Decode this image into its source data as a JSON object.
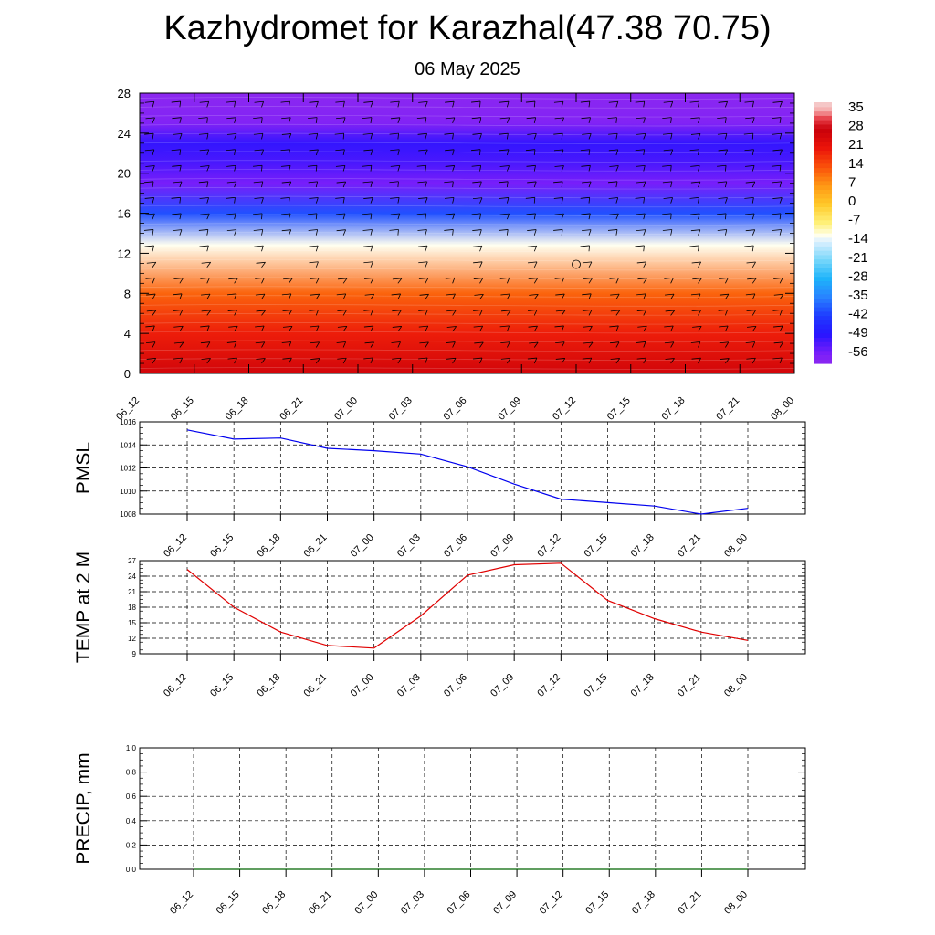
{
  "title": "Kazhydromet for Karazhal(47.38 70.75)",
  "subtitle": "06 May 2025",
  "colors": {
    "pmsl_line": "#0000ee",
    "temp_line": "#e00000",
    "precip_line": "#006400"
  },
  "chart_data": [
    {
      "type": "heatmap",
      "title": "",
      "xlabel": "",
      "ylabel": "",
      "x_ticks": [
        "06_12",
        "06_15",
        "06_18",
        "06_21",
        "07_00",
        "07_03",
        "07_06",
        "07_09",
        "07_12",
        "07_15",
        "07_18",
        "07_21",
        "08_00"
      ],
      "y_ticks": [
        "0",
        "4",
        "8",
        "12",
        "16",
        "20",
        "24",
        "28"
      ],
      "ylim": [
        0,
        28
      ],
      "colorbar_labels": [
        "35",
        "28",
        "21",
        "14",
        "7",
        "0",
        "-7",
        "-14",
        "-21",
        "-28",
        "-35",
        "-42",
        "-49",
        "-56"
      ],
      "colorbar_range": [
        -60,
        38
      ],
      "temperature_profile": [
        {
          "level": 0,
          "value": 26
        },
        {
          "level": 4,
          "value": 20
        },
        {
          "level": 8,
          "value": 12
        },
        {
          "level": 12.8,
          "value": -12
        },
        {
          "level": 16,
          "value": -40
        },
        {
          "level": 19,
          "value": -56
        },
        {
          "level": 21,
          "value": -52
        },
        {
          "level": 23,
          "value": -50
        },
        {
          "level": 25,
          "value": -58
        },
        {
          "level": 28,
          "value": -60
        }
      ],
      "wind_barbs": "present"
    },
    {
      "type": "line",
      "ylabel": "PMSL",
      "categories": [
        "06_12",
        "06_15",
        "06_18",
        "06_21",
        "07_00",
        "07_03",
        "07_06",
        "07_09",
        "07_12",
        "07_15",
        "07_18",
        "07_21",
        "08_00"
      ],
      "y_ticks": [
        "1008",
        "1010",
        "1012",
        "1014",
        "1016"
      ],
      "ylim": [
        1008,
        1016
      ],
      "grid": true,
      "series": [
        {
          "values": [
            1015.3,
            1014.5,
            1014.6,
            1013.7,
            1013.5,
            1013.2,
            1012.1,
            1010.6,
            1009.3,
            1009.0,
            1008.7,
            1008.0,
            1008.5
          ]
        }
      ]
    },
    {
      "type": "line",
      "ylabel": "TEMP at 2 M",
      "categories": [
        "06_12",
        "06_15",
        "06_18",
        "06_21",
        "07_00",
        "07_03",
        "07_06",
        "07_09",
        "07_12",
        "07_15",
        "07_18",
        "07_21",
        "08_00"
      ],
      "y_ticks": [
        "9",
        "12",
        "15",
        "18",
        "21",
        "24",
        "27"
      ],
      "ylim": [
        9,
        27
      ],
      "grid": true,
      "series": [
        {
          "values": [
            25.3,
            18.0,
            13.2,
            10.6,
            10.1,
            16.3,
            24.2,
            26.2,
            26.5,
            19.3,
            15.8,
            13.2,
            11.6
          ]
        }
      ]
    },
    {
      "type": "line",
      "ylabel": "PRECIP, mm",
      "categories": [
        "06_12",
        "06_15",
        "06_18",
        "06_21",
        "07_00",
        "07_03",
        "07_06",
        "07_09",
        "07_12",
        "07_15",
        "07_18",
        "07_21",
        "08_00"
      ],
      "y_ticks": [
        "0.0",
        "0.2",
        "0.4",
        "0.6",
        "0.8",
        "1.0"
      ],
      "ylim": [
        0,
        1
      ],
      "grid": true,
      "series": [
        {
          "values": [
            0,
            0,
            0,
            0,
            0,
            0,
            0,
            0,
            0,
            0,
            0,
            0,
            0
          ]
        }
      ]
    }
  ]
}
